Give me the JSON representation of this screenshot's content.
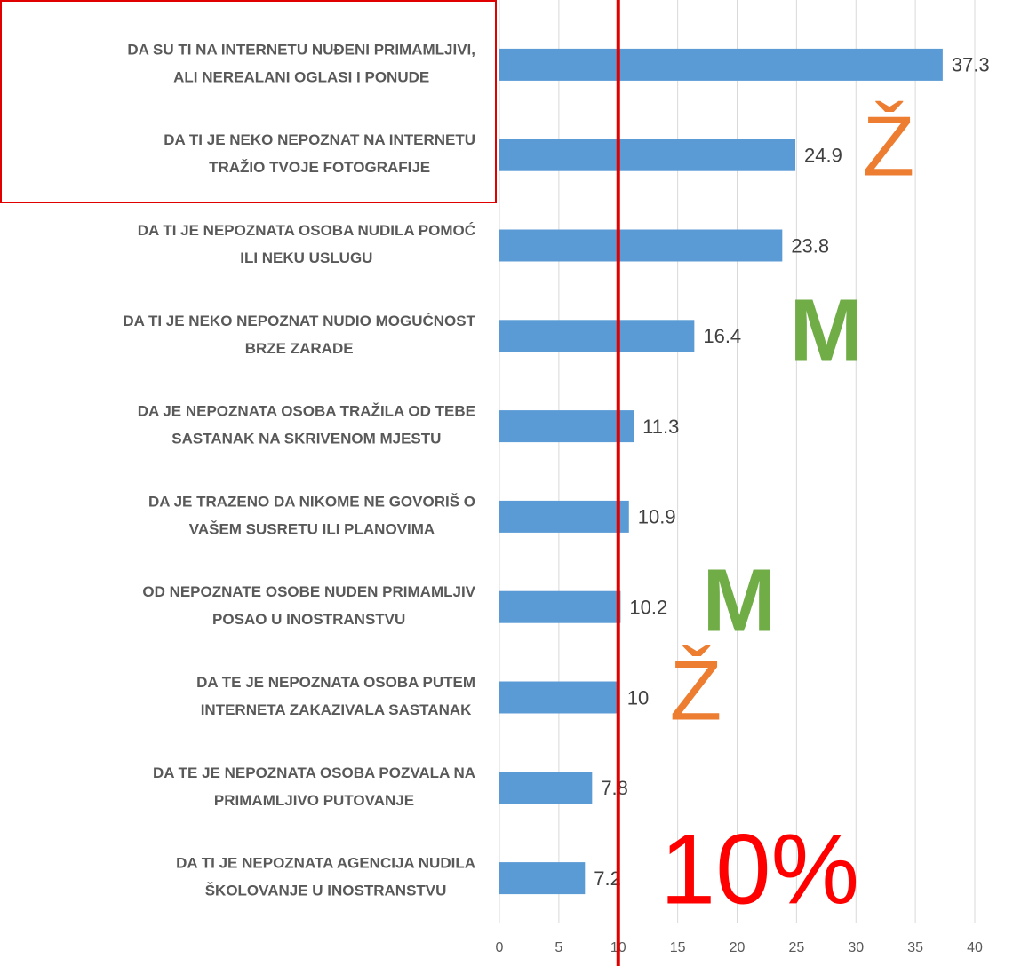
{
  "chart_data": {
    "type": "barh",
    "categories": [
      "DA SU TI NA INTERNETU NUĐENI PRIMAMLJIVI,\nALI NEREALANI OGLASI I PONUDE",
      "DA TI JE NEKO NEPOZNAT NA INTERNETU\nTRAŽIO TVOJE FOTOGRAFIJE",
      "DA TI JE NEPOZNATA OSOBA NUDILA POMOĆ\nILI NEKU USLUGU",
      "DA TI JE NEKO NEPOZNAT NUDIO MOGUĆNOST\nBRZE ZARADE",
      "DA JE NEPOZNATA OSOBA TRAŽILA OD TEBE\nSASTANAK NA SKRIVENOM MJESTU",
      "DA JE TRAZENO DA NIKOME NE GOVORIŠ O\nVAŠEM SUSRETU ILI PLANOVIMA",
      "OD NEPOZNATE OSOBE NUDEN PRIMAMLJIV\nPOSAO U INOSTRANSTVU",
      "DA TE JE NEPOZNATA OSOBA PUTEM\nINTERNETA ZAKAZIVALA SASTANAK",
      "DA TE JE NEPOZNATA OSOBA POZVALA NA\nPRIMAMLJIVO PUTOVANJE",
      "DA TI JE NEPOZNATA AGENCIJA NUDILA\nŠKOLOVANJE U INOSTRANSTVU"
    ],
    "values": [
      37.3,
      24.9,
      23.8,
      16.4,
      11.3,
      10.9,
      10.2,
      10,
      7.8,
      7.2
    ],
    "color": "#5b9bd5",
    "xlim": [
      0,
      40
    ],
    "xticks": [
      0,
      5,
      10,
      15,
      20,
      25,
      30,
      35,
      40
    ],
    "grid": true,
    "reference_line": {
      "value": 10,
      "color": "#e00000"
    },
    "annotations": [
      {
        "text": "Ž",
        "color": "#ed7d31"
      },
      {
        "text": "M",
        "color": "#70ad47"
      },
      {
        "text": "M",
        "color": "#70ad47"
      },
      {
        "text": "Ž",
        "color": "#ed7d31"
      },
      {
        "text": "10%",
        "color": "#ff0000"
      }
    ]
  }
}
